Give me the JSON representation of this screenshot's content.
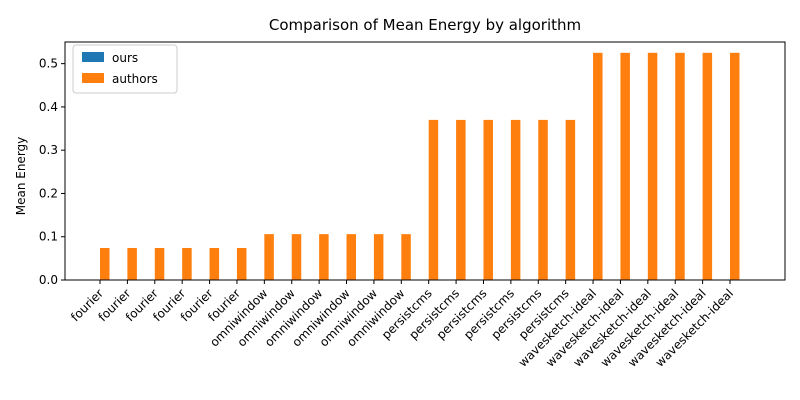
{
  "chart_data": {
    "type": "bar",
    "title": "Comparison of Mean Energy by algorithm",
    "xlabel": "",
    "ylabel": "Mean Energy",
    "ylim": [
      0,
      0.55
    ],
    "yticks": [
      0.0,
      0.1,
      0.2,
      0.3,
      0.4,
      0.5
    ],
    "ytick_labels": [
      "0.0",
      "0.1",
      "0.2",
      "0.3",
      "0.4",
      "0.5"
    ],
    "grid": false,
    "legend_position": "top-left",
    "categories": [
      "fourier",
      "fourier",
      "fourier",
      "fourier",
      "fourier",
      "fourier",
      "omniwindow",
      "omniwindow",
      "omniwindow",
      "omniwindow",
      "omniwindow",
      "omniwindow",
      "persistcms",
      "persistcms",
      "persistcms",
      "persistcms",
      "persistcms",
      "persistcms",
      "wavesketch-ideal",
      "wavesketch-ideal",
      "wavesketch-ideal",
      "wavesketch-ideal",
      "wavesketch-ideal",
      "wavesketch-ideal"
    ],
    "series": [
      {
        "name": "ours",
        "color": "#1f77b4",
        "values": [
          0,
          0,
          0,
          0,
          0,
          0,
          0,
          0,
          0,
          0,
          0,
          0,
          0,
          0,
          0,
          0,
          0,
          0,
          0,
          0,
          0,
          0,
          0,
          0
        ]
      },
      {
        "name": "authors",
        "color": "#ff7f0e",
        "values": [
          0.074,
          0.074,
          0.074,
          0.074,
          0.074,
          0.074,
          0.106,
          0.106,
          0.106,
          0.106,
          0.106,
          0.106,
          0.37,
          0.37,
          0.37,
          0.37,
          0.37,
          0.37,
          0.525,
          0.525,
          0.525,
          0.525,
          0.525,
          0.525
        ]
      }
    ]
  }
}
